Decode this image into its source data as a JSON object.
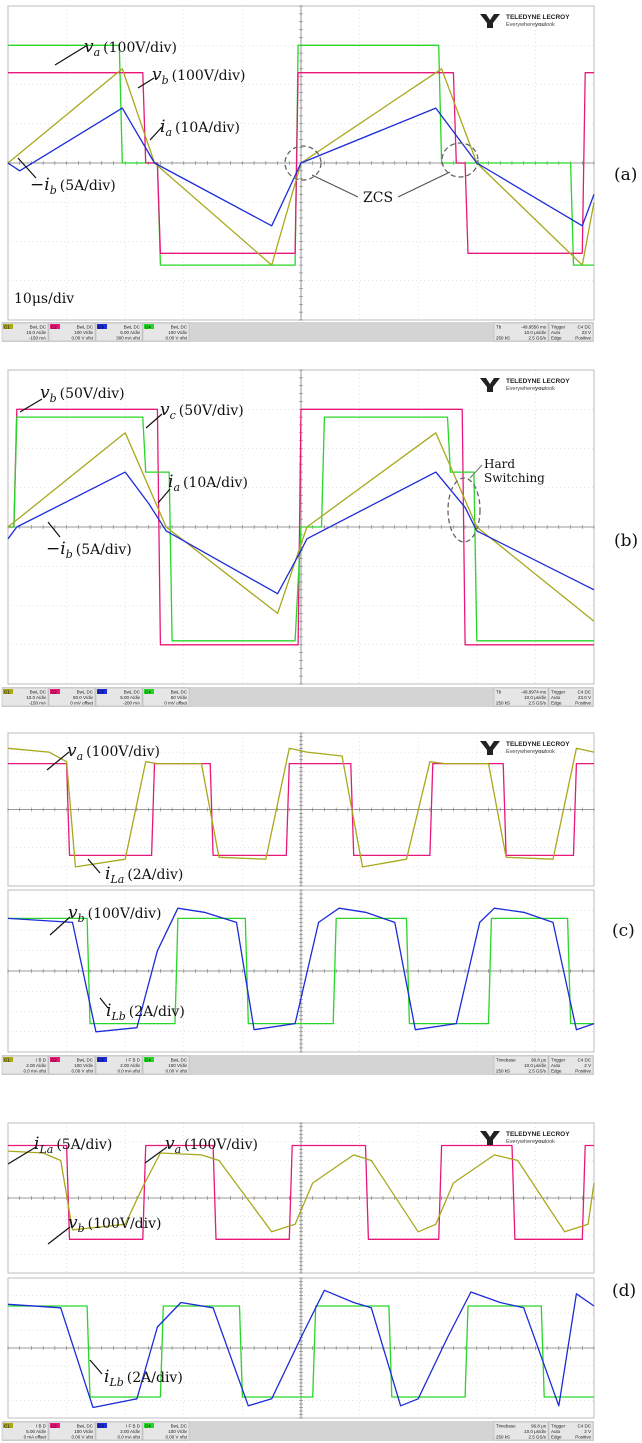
{
  "brand": {
    "name": "TELEDYNE LECROY",
    "tagline_a": "Everywhere",
    "tagline_b": "you",
    "tagline_c": "look"
  },
  "colors": {
    "ch1": "#a8a81c",
    "ch2": "#e8177a",
    "ch3": "#1b2cd8",
    "ch4": "#27d627",
    "grid": "#c9c9c9",
    "axis": "#7a7a7a",
    "bar": "#d4d4d4"
  },
  "panels": [
    {
      "label": "(a)",
      "annotations": [
        {
          "main": "v",
          "sub": "a",
          "unit": "(100V/div)"
        },
        {
          "main": "v",
          "sub": "b",
          "unit": "(100V/div)"
        },
        {
          "main": "i",
          "sub": "a",
          "unit": "(10A/div)"
        },
        {
          "main": "−i",
          "sub": "b",
          "unit": "(5A/div)"
        },
        {
          "main": "ZCS",
          "sub": "",
          "unit": ""
        },
        {
          "main": "10μs/div",
          "sub": "",
          "unit": ""
        }
      ],
      "status": {
        "channels": [
          {
            "id": "C1",
            "lines": [
              "BwL DC",
              "10.0 A/div",
              "-150 mA"
            ]
          },
          {
            "id": "C2",
            "lines": [
              "BwL DC",
              "100 V/div",
              "0.00 V ofst"
            ]
          },
          {
            "id": "C3",
            "lines": [
              "BwL DC",
              "5.00 A/div",
              "300 mA ofst"
            ]
          },
          {
            "id": "C4",
            "lines": [
              "BwL DC",
              "100 V/div",
              "0.00 V ofst"
            ]
          }
        ],
        "timebase": [
          "Tb",
          "-49.9556 ms",
          "10.0 μs/div",
          "250 kS",
          "2.5 GS/s"
        ],
        "trigger": [
          "Trigger",
          "C4 DC",
          "Auto",
          "23 V",
          "Edge",
          "Positive"
        ]
      }
    },
    {
      "label": "(b)",
      "annotations": [
        {
          "main": "v",
          "sub": "b",
          "unit": "(50V/div)"
        },
        {
          "main": "v",
          "sub": "c",
          "unit": "(50V/div)"
        },
        {
          "main": "i",
          "sub": "a",
          "unit": "(10A/div)"
        },
        {
          "main": "−i",
          "sub": "b",
          "unit": "(5A/div)"
        },
        {
          "main": "Hard",
          "sub": "",
          "unit": ""
        },
        {
          "main": "Switching",
          "sub": "",
          "unit": ""
        }
      ],
      "status": {
        "channels": [
          {
            "id": "C1",
            "lines": [
              "BwL DC",
              "10.0 A/div",
              "-150 mA"
            ]
          },
          {
            "id": "C2",
            "lines": [
              "BwL DC",
              "50.0 V/div",
              "0 mV offset"
            ]
          },
          {
            "id": "C3",
            "lines": [
              "BwL DC",
              "5.00 A/div",
              "-200 mA"
            ]
          },
          {
            "id": "C4",
            "lines": [
              "BwL DC",
              "50 V/div",
              "0 mV offset"
            ]
          }
        ],
        "timebase": [
          "Tb",
          "-49.9974 ms",
          "10.0 μs/div",
          "250 kS",
          "2.5 GS/s"
        ],
        "trigger": [
          "Trigger",
          "C4 DC",
          "Auto",
          "23.0 V",
          "Edge",
          "Positive"
        ]
      }
    },
    {
      "label": "(c)",
      "annotations": [
        {
          "main": "v",
          "sub": "a",
          "unit": "(100V/div)"
        },
        {
          "main": "i",
          "sub": "La",
          "unit": "(2A/div)"
        },
        {
          "main": "v",
          "sub": "b",
          "unit": "(100V/div)"
        },
        {
          "main": "i",
          "sub": "Lb",
          "unit": "(2A/div)"
        }
      ],
      "status": {
        "channels": [
          {
            "id": "C1",
            "lines": [
              "I B D",
              "2.00 A/div",
              "0.0 mA ofst"
            ]
          },
          {
            "id": "C2",
            "lines": [
              "BwL DC",
              "100 V/div",
              "0.00 V ofst"
            ]
          },
          {
            "id": "C3",
            "lines": [
              "I F B D",
              "2.00 A/div",
              "0.0 mA ofst"
            ]
          },
          {
            "id": "C4",
            "lines": [
              "BwL DC",
              "100 V/div",
              "0.00 V ofst"
            ]
          }
        ],
        "timebase": [
          "Timebase",
          "96.8 μs",
          "10.0 μs/div",
          "250 kS",
          "2.5 GS/s"
        ],
        "trigger": [
          "Trigger",
          "C4 DC",
          "Auto",
          "2 V",
          "Edge",
          "Positive"
        ]
      }
    },
    {
      "label": "(d)",
      "annotations": [
        {
          "main": "i",
          "sub": "La",
          "unit": "(5A/div)"
        },
        {
          "main": "v",
          "sub": "a",
          "unit": "(100V/div)"
        },
        {
          "main": "v",
          "sub": "b",
          "unit": "(100V/div)"
        },
        {
          "main": "i",
          "sub": "Lb",
          "unit": "(2A/div)"
        }
      ],
      "status": {
        "channels": [
          {
            "id": "C1",
            "lines": [
              "I B D",
              "5.00 A/div",
              "0 mA offset"
            ]
          },
          {
            "id": "C2",
            "lines": [
              "BwL DC",
              "100 V/div",
              "0.00 V ofst"
            ]
          },
          {
            "id": "C3",
            "lines": [
              "I F B D",
              "2.00 A/div",
              "0.0 mA ofst"
            ]
          },
          {
            "id": "C4",
            "lines": [
              "BwL DC",
              "100 V/div",
              "0.00 V ofst"
            ]
          }
        ],
        "timebase": [
          "Timebase",
          "96.8 μs",
          "10.0 μs/div",
          "250 kS",
          "2.5 GS/s"
        ],
        "trigger": [
          "Trigger",
          "C4 DC",
          "Auto",
          "2 V",
          "Edge",
          "Positive"
        ]
      }
    }
  ],
  "chart_data": [
    {
      "type": "line",
      "title": "(a)",
      "xlabel": "",
      "ylabel": "",
      "x_unit": "div",
      "xlim": [
        0,
        10
      ],
      "ylim": [
        -4,
        4
      ],
      "grid": true,
      "series": [
        {
          "name": "v_a (100V/div)",
          "color": "#27d627",
          "x": [
            0,
            1.9,
            1.95,
            2.15,
            2.55,
            2.6,
            4.9,
            4.95,
            5.15,
            7.35,
            7.4,
            9.6,
            9.65,
            9.85,
            10
          ],
          "y": [
            3.0,
            3.0,
            0.0,
            0.0,
            0.0,
            -2.6,
            -2.6,
            3.0,
            3.0,
            3.0,
            0.0,
            0.0,
            -2.6,
            -2.6,
            -2.6
          ]
        },
        {
          "name": "v_b (100V/div)",
          "color": "#e8177a",
          "x": [
            0,
            2.3,
            2.35,
            2.55,
            2.6,
            4.9,
            4.95,
            7.6,
            7.65,
            7.8,
            7.85,
            9.8,
            9.85,
            10
          ],
          "y": [
            2.3,
            2.3,
            0.0,
            0.0,
            -2.3,
            -2.3,
            2.3,
            2.3,
            0.0,
            0.0,
            -2.3,
            -2.3,
            2.3,
            2.3
          ]
        },
        {
          "name": "i_a (10A/div)",
          "color": "#a8a81c",
          "x": [
            0,
            1.95,
            2.5,
            4.5,
            5.0,
            7.4,
            8.0,
            9.8,
            10
          ],
          "y": [
            0.0,
            2.4,
            0.0,
            -2.6,
            0.0,
            2.4,
            0.0,
            -2.6,
            -1.0
          ]
        },
        {
          "name": "−i_b (5A/div)",
          "color": "#1b2cd8",
          "x": [
            0,
            0.2,
            1.95,
            2.5,
            4.5,
            5.0,
            7.3,
            8.0,
            9.8,
            10
          ],
          "y": [
            0.0,
            -0.2,
            1.4,
            0.0,
            -1.6,
            0.0,
            1.4,
            0.0,
            -1.6,
            -0.8
          ]
        }
      ]
    },
    {
      "type": "line",
      "title": "(b)",
      "xlabel": "",
      "ylabel": "",
      "x_unit": "div",
      "xlim": [
        0,
        10
      ],
      "ylim": [
        -4,
        4
      ],
      "grid": true,
      "series": [
        {
          "name": "v_b (50V/div)",
          "color": "#e8177a",
          "x": [
            0,
            0.1,
            0.15,
            2.55,
            2.6,
            4.95,
            5.0,
            7.75,
            7.8,
            10
          ],
          "y": [
            0.0,
            0.0,
            3.0,
            3.0,
            -3.0,
            -3.0,
            3.0,
            3.0,
            -3.0,
            -3.0
          ]
        },
        {
          "name": "v_c (50V/div)",
          "color": "#27d627",
          "x": [
            0,
            0.1,
            0.15,
            2.3,
            2.35,
            2.75,
            2.8,
            4.9,
            5.0,
            5.35,
            5.4,
            7.5,
            7.55,
            7.95,
            8.0,
            10
          ],
          "y": [
            0.0,
            0.0,
            2.8,
            2.8,
            1.4,
            1.4,
            -2.9,
            -2.9,
            0.0,
            0.0,
            2.8,
            2.8,
            1.4,
            1.4,
            -2.9,
            -2.9
          ]
        },
        {
          "name": "i_a (10A/div)",
          "color": "#a8a81c",
          "x": [
            0,
            2.0,
            2.7,
            4.6,
            5.1,
            7.3,
            8.0,
            10
          ],
          "y": [
            0.0,
            2.4,
            0.0,
            -2.2,
            0.0,
            2.4,
            0.0,
            -2.4
          ]
        },
        {
          "name": "−i_b (5A/div)",
          "color": "#1b2cd8",
          "x": [
            0,
            0.15,
            2.0,
            2.4,
            2.7,
            4.6,
            5.0,
            5.1,
            7.3,
            7.8,
            8.0,
            10
          ],
          "y": [
            -0.3,
            0.0,
            1.4,
            0.6,
            -0.1,
            -1.7,
            -0.6,
            -0.3,
            1.4,
            0.5,
            -0.1,
            -1.6
          ]
        }
      ]
    },
    {
      "type": "line",
      "title": "(c)",
      "xlabel": "",
      "ylabel": "",
      "x_unit": "div",
      "xlim": [
        0,
        10
      ],
      "ylim": [
        -4,
        4
      ],
      "grid": true,
      "series": [
        {
          "name": "v_a (100V/div)",
          "color": "#e8177a",
          "x": [
            0,
            1.0,
            1.05,
            2.45,
            2.5,
            3.45,
            3.5,
            4.75,
            4.8,
            5.85,
            5.9,
            7.2,
            7.25,
            8.45,
            8.5,
            9.65,
            9.7,
            10
          ],
          "y": [
            2.4,
            2.4,
            -2.4,
            -2.4,
            2.4,
            2.4,
            -2.4,
            -2.4,
            2.4,
            2.4,
            -2.4,
            -2.4,
            2.4,
            2.4,
            -2.4,
            -2.4,
            2.4,
            2.4
          ]
        },
        {
          "name": "i_La (2A/div)",
          "color": "#a8a81c",
          "x": [
            0,
            0.7,
            1.0,
            1.15,
            2.0,
            2.35,
            2.55,
            3.3,
            3.6,
            4.4,
            4.8,
            5.1,
            5.7,
            6.05,
            6.8,
            7.2,
            7.45,
            8.2,
            8.5,
            9.3,
            9.7,
            10
          ],
          "y": [
            3.2,
            3.0,
            2.5,
            -3.0,
            -2.6,
            2.5,
            2.4,
            2.4,
            -2.5,
            -2.6,
            3.2,
            3.0,
            2.8,
            -3.0,
            -2.6,
            2.5,
            2.4,
            2.4,
            -2.5,
            -2.6,
            3.2,
            3.0
          ]
        },
        {
          "name": "v_b (100V/div)",
          "color": "#27d627",
          "x": [
            0,
            1.35,
            1.4,
            2.85,
            2.9,
            4.05,
            4.1,
            5.55,
            5.6,
            6.8,
            6.85,
            8.2,
            8.25,
            9.55,
            9.6,
            10
          ],
          "y": [
            2.6,
            2.6,
            -2.6,
            -2.6,
            2.6,
            2.6,
            -2.6,
            -2.6,
            2.6,
            2.6,
            -2.6,
            -2.6,
            2.6,
            2.6,
            -2.6,
            -2.6
          ]
        },
        {
          "name": "i_Lb (2A/div)",
          "color": "#1b2cd8",
          "x": [
            0,
            1.1,
            1.5,
            2.2,
            2.55,
            2.9,
            3.35,
            3.9,
            4.2,
            4.9,
            5.3,
            5.65,
            6.1,
            6.6,
            6.95,
            7.65,
            8.05,
            8.3,
            8.8,
            9.3,
            9.7,
            10
          ],
          "y": [
            2.6,
            2.4,
            -3.0,
            -2.8,
            1.0,
            3.1,
            2.9,
            2.4,
            -2.9,
            -2.6,
            2.4,
            3.1,
            2.9,
            2.4,
            -2.9,
            -2.6,
            2.4,
            3.1,
            2.9,
            2.4,
            -2.9,
            -2.6
          ]
        }
      ]
    },
    {
      "type": "line",
      "title": "(d)",
      "xlabel": "",
      "ylabel": "",
      "x_unit": "div",
      "xlim": [
        0,
        10
      ],
      "ylim": [
        -4,
        4
      ],
      "grid": true,
      "series": [
        {
          "name": "v_a (100V/div)",
          "color": "#e8177a",
          "x": [
            0,
            1.0,
            1.05,
            2.3,
            2.35,
            3.5,
            3.55,
            4.8,
            4.85,
            6.1,
            6.15,
            7.35,
            7.4,
            8.6,
            8.65,
            9.8,
            9.85,
            10
          ],
          "y": [
            2.8,
            2.8,
            -2.2,
            -2.2,
            2.8,
            2.8,
            -2.2,
            -2.2,
            2.8,
            2.8,
            -2.2,
            -2.2,
            2.8,
            2.8,
            -2.2,
            -2.2,
            2.8,
            2.8
          ]
        },
        {
          "name": "i_La (5A/div)",
          "color": "#a8a81c",
          "x": [
            0,
            0.6,
            0.9,
            1.1,
            2.0,
            2.3,
            2.6,
            3.3,
            3.6,
            4.5,
            4.9,
            5.2,
            5.9,
            6.2,
            7.0,
            7.3,
            7.6,
            8.3,
            8.7,
            9.5,
            9.9,
            10
          ],
          "y": [
            2.5,
            2.4,
            2.0,
            -1.7,
            -1.4,
            0.6,
            2.4,
            2.3,
            2.0,
            -1.8,
            -1.4,
            0.8,
            2.3,
            2.0,
            -1.8,
            -1.4,
            0.8,
            2.3,
            2.0,
            -1.8,
            -1.4,
            0.8
          ]
        },
        {
          "name": "v_b (100V/div)",
          "color": "#27d627",
          "x": [
            0,
            1.35,
            1.4,
            2.6,
            2.65,
            3.95,
            4.0,
            5.2,
            5.25,
            6.5,
            6.55,
            7.8,
            7.85,
            9.1,
            9.15,
            10
          ],
          "y": [
            2.4,
            2.4,
            -2.8,
            -2.8,
            2.4,
            2.4,
            -2.8,
            -2.8,
            2.4,
            2.4,
            -2.8,
            -2.8,
            2.4,
            2.4,
            -2.8,
            -2.8
          ]
        },
        {
          "name": "i_Lb (2A/div)",
          "color": "#1b2cd8",
          "x": [
            0,
            0.9,
            1.45,
            2.2,
            2.55,
            2.95,
            3.5,
            4.1,
            4.5,
            5.0,
            5.4,
            5.9,
            6.2,
            6.7,
            7.0,
            7.5,
            7.9,
            8.4,
            8.8,
            9.4,
            9.7,
            10
          ],
          "y": [
            2.5,
            2.3,
            -3.4,
            -2.9,
            1.2,
            2.6,
            2.3,
            -3.3,
            -2.9,
            0.6,
            3.3,
            2.6,
            2.3,
            -3.3,
            -2.9,
            0.6,
            3.2,
            2.6,
            2.3,
            -3.3,
            3.1,
            2.4
          ]
        }
      ]
    }
  ]
}
